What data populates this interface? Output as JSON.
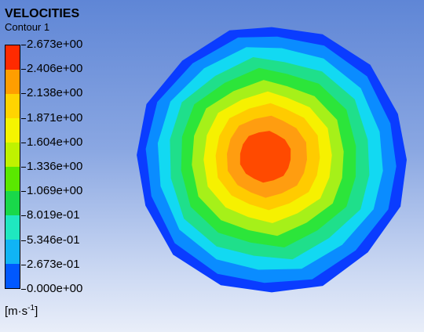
{
  "legend": {
    "title": "VELOCITIES",
    "subtitle": "Contour 1",
    "levels": [
      "2.673e+00",
      "2.406e+00",
      "2.138e+00",
      "1.871e+00",
      "1.604e+00",
      "1.336e+00",
      "1.069e+00",
      "8.019e-01",
      "5.346e-01",
      "2.673e-01",
      "0.000e+00"
    ],
    "band_colors": [
      "#ff2a00",
      "#ff9e00",
      "#ffd400",
      "#f5f500",
      "#bff200",
      "#5ae800",
      "#19d84a",
      "#1fe7c0",
      "#10b4f5",
      "#0058ff"
    ],
    "units_prefix": "[m·s",
    "units_exp": "-1",
    "units_suffix": "]"
  },
  "contour": {
    "fill_colors": [
      "#0a3cff",
      "#0a8cff",
      "#12d9f2",
      "#1fdf8b",
      "#2ce53a",
      "#a6f019",
      "#f6f100",
      "#ffcb00",
      "#ff9d10",
      "#ff4a00"
    ]
  }
}
